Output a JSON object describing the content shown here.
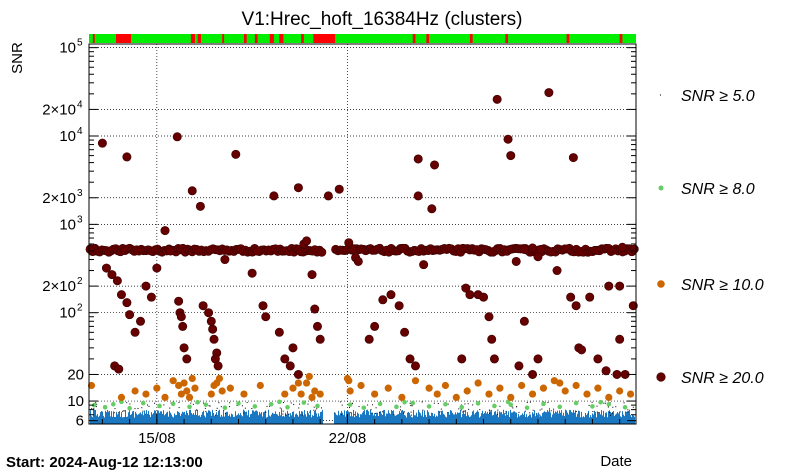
{
  "chart_data": {
    "type": "scatter",
    "title": "V1:Hrec_hoft_16384Hz (clusters)",
    "ylabel": "SNR",
    "xlabel": "Date",
    "start_label": "Start: 2024-Aug-12 12:13:00",
    "y_scale": "log",
    "ylim": [
      5.5,
      110000
    ],
    "xlim_days": [
      12.508,
      32.6
    ],
    "grid": true,
    "x_ticks": [
      {
        "label": "15/08",
        "day": 15
      },
      {
        "label": "22/08",
        "day": 22
      }
    ],
    "y_ticks": [
      {
        "label": "6",
        "value": 6
      },
      {
        "label": "10",
        "value": 10
      },
      {
        "label": "20",
        "value": 20
      },
      {
        "label": "10",
        "sup": "2",
        "value": 100
      },
      {
        "label": "2×10",
        "sup": "2",
        "value": 200
      },
      {
        "label": "10",
        "sup": "3",
        "value": 1000
      },
      {
        "label": "2×10",
        "sup": "3",
        "value": 2000
      },
      {
        "label": "10",
        "sup": "4",
        "value": 10000
      },
      {
        "label": "2×10",
        "sup": "4",
        "value": 20000
      },
      {
        "label": "10",
        "sup": "5",
        "value": 100000
      }
    ],
    "legend_position": "right",
    "series": [
      {
        "name": "SNR ≥ 5.0",
        "color": "#000000"
      },
      {
        "name": "SNR ≥ 8.0",
        "color": "#66cc66"
      },
      {
        "name": "SNR ≥ 10.0",
        "color": "#cc6600"
      },
      {
        "name": "SNR ≥ 20.0",
        "color": "#660000"
      }
    ],
    "segment_bar": {
      "ok_color": "#00ee00",
      "bad_color": "#ff0000",
      "bad_ranges_days": [
        [
          12.65,
          12.72
        ],
        [
          13.5,
          14.05
        ],
        [
          16.25,
          16.4
        ],
        [
          16.5,
          16.62
        ],
        [
          17.4,
          17.47
        ],
        [
          18.2,
          18.3
        ],
        [
          18.6,
          18.7
        ],
        [
          19.15,
          19.3
        ],
        [
          19.5,
          19.65
        ],
        [
          20.3,
          20.4
        ],
        [
          20.75,
          21.55
        ],
        [
          24.4,
          24.5
        ],
        [
          24.9,
          25.0
        ],
        [
          26.5,
          26.6
        ],
        [
          27.8,
          27.9
        ],
        [
          30.05,
          30.15
        ],
        [
          32.0,
          32.1
        ]
      ]
    },
    "population": {
      "base_color": "#1a78c2",
      "base_band": [
        5.6,
        8.0
      ],
      "gaps_days": [
        [
          21.1,
          21.5
        ]
      ],
      "baseline_row_snr": 520
    },
    "points_snr20": [
      [
        12.55,
        520
      ],
      [
        13.0,
        8300
      ],
      [
        13.15,
        320
      ],
      [
        13.35,
        270
      ],
      [
        13.55,
        230
      ],
      [
        13.7,
        160
      ],
      [
        13.9,
        130
      ],
      [
        14.0,
        95
      ],
      [
        13.45,
        25
      ],
      [
        13.6,
        23
      ],
      [
        14.2,
        60
      ],
      [
        14.4,
        80
      ],
      [
        14.6,
        200
      ],
      [
        14.8,
        150
      ],
      [
        13.9,
        5800
      ],
      [
        15.0,
        320
      ],
      [
        15.3,
        850
      ],
      [
        15.5,
        500
      ],
      [
        15.75,
        9800
      ],
      [
        15.8,
        135
      ],
      [
        15.85,
        100
      ],
      [
        15.9,
        90
      ],
      [
        15.95,
        70
      ],
      [
        16.0,
        40
      ],
      [
        16.1,
        30
      ],
      [
        16.3,
        2400
      ],
      [
        16.6,
        1600
      ],
      [
        16.7,
        120
      ],
      [
        16.9,
        100
      ],
      [
        17.0,
        80
      ],
      [
        17.05,
        65
      ],
      [
        17.1,
        50
      ],
      [
        17.2,
        35
      ],
      [
        17.15,
        30
      ],
      [
        17.25,
        25
      ],
      [
        17.5,
        400
      ],
      [
        17.9,
        6200
      ],
      [
        18.5,
        280
      ],
      [
        18.7,
        500
      ],
      [
        18.9,
        120
      ],
      [
        19.0,
        90
      ],
      [
        19.3,
        2100
      ],
      [
        19.5,
        60
      ],
      [
        19.7,
        30
      ],
      [
        19.9,
        25
      ],
      [
        20.0,
        40
      ],
      [
        20.2,
        20
      ],
      [
        20.4,
        600
      ],
      [
        20.5,
        650
      ],
      [
        20.7,
        270
      ],
      [
        20.8,
        110
      ],
      [
        20.9,
        70
      ],
      [
        21.0,
        50
      ],
      [
        20.2,
        2600
      ],
      [
        21.3,
        2100
      ],
      [
        21.7,
        2500
      ],
      [
        22.05,
        620
      ],
      [
        22.2,
        520
      ],
      [
        22.3,
        420
      ],
      [
        22.4,
        380
      ],
      [
        22.8,
        50
      ],
      [
        23.0,
        70
      ],
      [
        23.3,
        140
      ],
      [
        23.6,
        160
      ],
      [
        23.9,
        120
      ],
      [
        24.1,
        60
      ],
      [
        24.3,
        30
      ],
      [
        24.5,
        25
      ],
      [
        24.6,
        5500
      ],
      [
        24.6,
        2100
      ],
      [
        24.8,
        350
      ],
      [
        25.1,
        1500
      ],
      [
        25.2,
        4700
      ],
      [
        26.2,
        30
      ],
      [
        26.35,
        190
      ],
      [
        26.5,
        160
      ],
      [
        26.8,
        160
      ],
      [
        27.0,
        150
      ],
      [
        27.2,
        90
      ],
      [
        27.3,
        50
      ],
      [
        27.4,
        30
      ],
      [
        27.5,
        26000
      ],
      [
        27.9,
        9200
      ],
      [
        28.0,
        6000
      ],
      [
        28.3,
        25
      ],
      [
        28.5,
        80
      ],
      [
        28.8,
        20
      ],
      [
        29.0,
        30
      ],
      [
        29.4,
        31000
      ],
      [
        29.7,
        300
      ],
      [
        30.2,
        150
      ],
      [
        30.4,
        120
      ],
      [
        30.5,
        40
      ],
      [
        30.6,
        38
      ],
      [
        31.2,
        30
      ],
      [
        31.5,
        22
      ],
      [
        31.9,
        20
      ],
      [
        30.3,
        5700
      ],
      [
        28.2,
        380
      ],
      [
        29.0,
        430
      ],
      [
        28.5,
        520
      ],
      [
        28.8,
        540
      ],
      [
        29.1,
        520
      ],
      [
        31.6,
        200
      ],
      [
        32.0,
        200
      ],
      [
        32.1,
        550
      ],
      [
        32.5,
        120
      ],
      [
        32.2,
        20
      ],
      [
        30.9,
        150
      ],
      [
        32.0,
        50
      ]
    ],
    "points_snr10": [
      [
        12.6,
        15
      ],
      [
        13.7,
        11
      ],
      [
        14.2,
        13
      ],
      [
        14.6,
        12
      ],
      [
        15.0,
        14
      ],
      [
        15.3,
        11
      ],
      [
        15.6,
        17
      ],
      [
        15.8,
        15
      ],
      [
        15.9,
        12
      ],
      [
        16.0,
        16
      ],
      [
        16.1,
        13
      ],
      [
        16.2,
        11
      ],
      [
        16.3,
        18
      ],
      [
        16.4,
        14
      ],
      [
        17.0,
        12
      ],
      [
        17.1,
        15
      ],
      [
        17.2,
        16
      ],
      [
        17.3,
        18
      ],
      [
        17.4,
        13
      ],
      [
        17.7,
        14
      ],
      [
        18.2,
        12
      ],
      [
        18.8,
        15
      ],
      [
        19.7,
        12
      ],
      [
        20.0,
        14
      ],
      [
        20.2,
        16
      ],
      [
        20.3,
        12
      ],
      [
        20.5,
        16
      ],
      [
        20.6,
        19
      ],
      [
        20.7,
        11
      ],
      [
        20.8,
        13
      ],
      [
        21.0,
        12
      ],
      [
        22.0,
        18
      ],
      [
        22.05,
        17
      ],
      [
        22.1,
        13
      ],
      [
        22.5,
        15
      ],
      [
        23.0,
        12
      ],
      [
        23.5,
        14
      ],
      [
        24.0,
        11
      ],
      [
        24.5,
        17
      ],
      [
        25.0,
        14
      ],
      [
        25.3,
        12
      ],
      [
        25.6,
        15
      ],
      [
        26.0,
        11
      ],
      [
        26.4,
        13
      ],
      [
        26.8,
        16
      ],
      [
        27.2,
        12
      ],
      [
        27.6,
        14
      ],
      [
        28.0,
        11
      ],
      [
        28.4,
        15
      ],
      [
        28.8,
        12
      ],
      [
        29.2,
        14
      ],
      [
        29.6,
        17
      ],
      [
        29.8,
        16
      ],
      [
        30.0,
        13
      ],
      [
        30.4,
        15
      ],
      [
        30.8,
        12
      ],
      [
        31.2,
        14
      ],
      [
        31.6,
        11
      ],
      [
        32.0,
        13
      ],
      [
        32.4,
        12
      ]
    ],
    "points_snr8": [
      [
        12.7,
        9
      ],
      [
        13.1,
        8.5
      ],
      [
        13.4,
        9.2
      ],
      [
        14.0,
        8.3
      ],
      [
        14.5,
        9.5
      ],
      [
        15.1,
        8.8
      ],
      [
        15.6,
        9.3
      ],
      [
        16.2,
        8.6
      ],
      [
        16.8,
        9.1
      ],
      [
        17.5,
        8.4
      ],
      [
        18.0,
        9.4
      ],
      [
        18.6,
        8.7
      ],
      [
        19.2,
        9.2
      ],
      [
        19.8,
        8.5
      ],
      [
        20.4,
        9.6
      ],
      [
        20.9,
        8.8
      ],
      [
        22.1,
        9.1
      ],
      [
        22.6,
        8.4
      ],
      [
        23.2,
        9.3
      ],
      [
        23.8,
        8.6
      ],
      [
        24.4,
        9.5
      ],
      [
        25.0,
        8.7
      ],
      [
        25.6,
        9.2
      ],
      [
        26.2,
        8.5
      ],
      [
        26.8,
        9.4
      ],
      [
        27.4,
        8.8
      ],
      [
        28.0,
        9.1
      ],
      [
        28.6,
        8.4
      ],
      [
        29.2,
        9.3
      ],
      [
        29.8,
        8.6
      ],
      [
        30.4,
        9.5
      ],
      [
        31.0,
        8.7
      ],
      [
        31.6,
        9.2
      ],
      [
        32.2,
        8.5
      ],
      [
        13.7,
        9.8
      ],
      [
        16.5,
        9.7
      ],
      [
        19.5,
        9.8
      ],
      [
        24.1,
        9.7
      ],
      [
        27.9,
        9.8
      ],
      [
        31.3,
        9.7
      ]
    ]
  }
}
